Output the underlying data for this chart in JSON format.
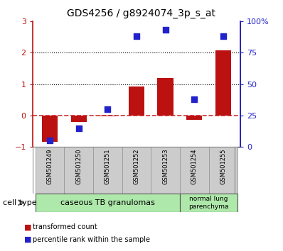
{
  "title": "GDS4256 / g8924074_3p_s_at",
  "samples": [
    "GSM501249",
    "GSM501250",
    "GSM501251",
    "GSM501252",
    "GSM501253",
    "GSM501254",
    "GSM501255"
  ],
  "transformed_count": [
    -0.85,
    -0.2,
    -0.02,
    0.92,
    1.2,
    -0.13,
    2.08
  ],
  "percentile_rank": [
    5,
    15,
    30,
    88,
    93,
    38,
    88
  ],
  "ylim_left": [
    -1,
    3
  ],
  "ylim_right": [
    0,
    100
  ],
  "yticks_left": [
    -1,
    0,
    1,
    2,
    3
  ],
  "yticks_right": [
    0,
    25,
    50,
    75,
    100
  ],
  "bar_color": "#bb1111",
  "dot_color": "#2222cc",
  "hline_color": "#cc3333",
  "dotted_line_color": "#000000",
  "bg_plot": "#ffffff",
  "bg_xlabels": "#cccccc",
  "group1_label": "caseous TB granulomas",
  "group2_label": "normal lung\nparenchyma",
  "group1_indices": [
    0,
    1,
    2,
    3,
    4
  ],
  "group2_indices": [
    5,
    6
  ],
  "group1_color": "#aee8aa",
  "group2_color": "#aee8aa",
  "cell_type_label": "cell type",
  "legend_bar_label": "transformed count",
  "legend_dot_label": "percentile rank within the sample",
  "bar_width": 0.55
}
